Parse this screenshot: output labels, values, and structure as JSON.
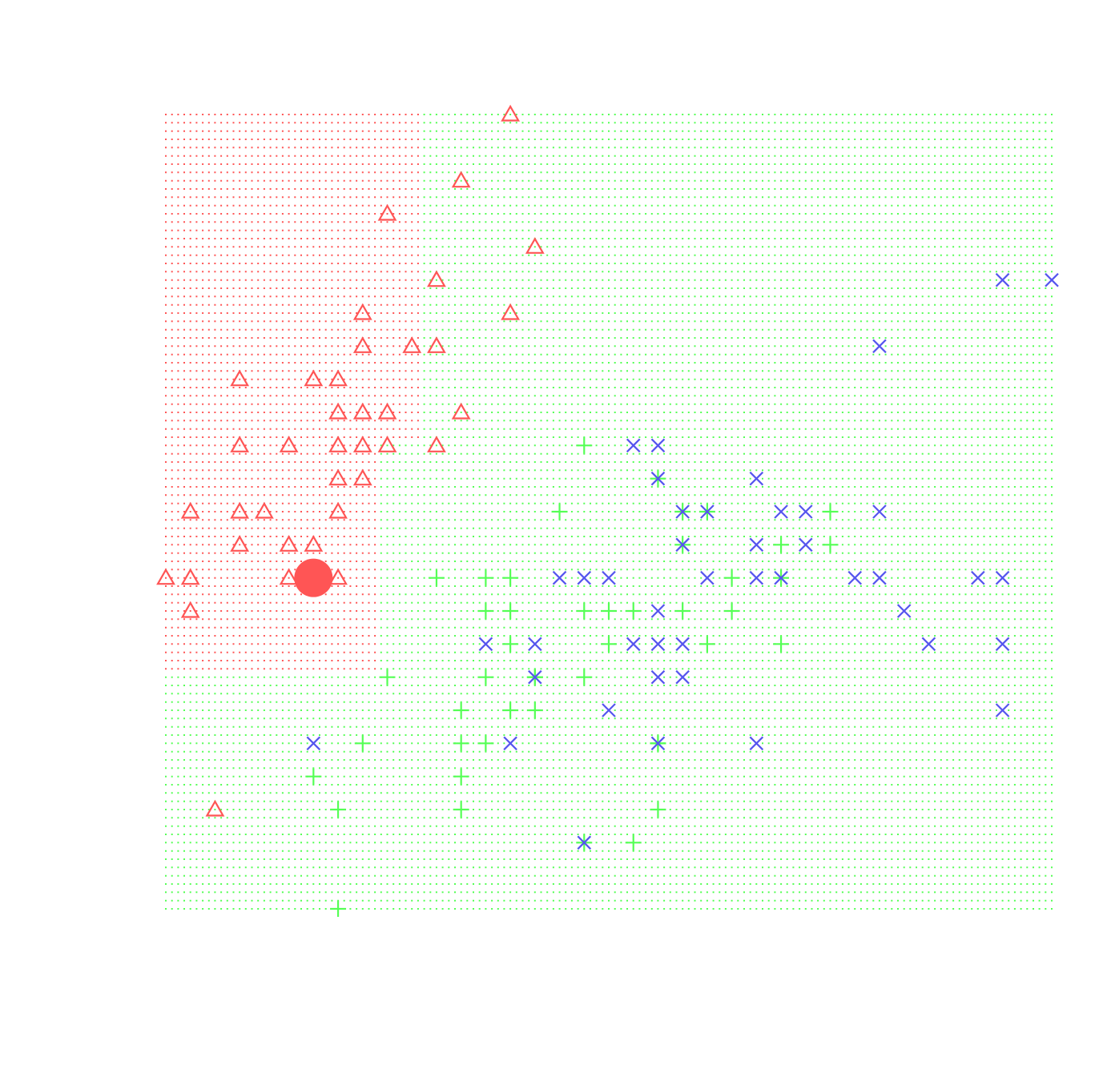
{
  "chart_data": {
    "type": "scatter",
    "title": "",
    "xlabel": "",
    "ylabel": "",
    "axes_visible": false,
    "grid": false,
    "xlim": [
      0,
      36
    ],
    "ylim": [
      0,
      24
    ],
    "colors": {
      "class1": "#ff5555",
      "class2": "#55ff55",
      "class3": "#5555ee"
    },
    "background_regions": [
      {
        "class": "class1",
        "x_range": [
          0,
          10.25
        ],
        "y_range": [
          14.25,
          24
        ]
      },
      {
        "class": "class1",
        "x_range": [
          0,
          8.5
        ],
        "y_range": [
          7.25,
          14.25
        ]
      },
      {
        "class": "class2",
        "x_range": [
          10.25,
          36
        ],
        "y_range": [
          14.25,
          24
        ]
      },
      {
        "class": "class2",
        "x_range": [
          8.5,
          36
        ],
        "y_range": [
          7.25,
          14.25
        ]
      },
      {
        "class": "class2",
        "x_range": [
          0,
          36
        ],
        "y_range": [
          0,
          7.25
        ]
      }
    ],
    "query_point": {
      "x": 6,
      "y": 10,
      "class": "class1"
    },
    "series": [
      {
        "class": "class1",
        "marker": "triangle",
        "points": [
          [
            14,
            24
          ],
          [
            12,
            22
          ],
          [
            9,
            21
          ],
          [
            15,
            20
          ],
          [
            11,
            19
          ],
          [
            8,
            18
          ],
          [
            14,
            18
          ],
          [
            8,
            17
          ],
          [
            10,
            17
          ],
          [
            11,
            17
          ],
          [
            3,
            16
          ],
          [
            6,
            16
          ],
          [
            7,
            16
          ],
          [
            7,
            15
          ],
          [
            8,
            15
          ],
          [
            9,
            15
          ],
          [
            12,
            15
          ],
          [
            3,
            14
          ],
          [
            5,
            14
          ],
          [
            7,
            14
          ],
          [
            8,
            14
          ],
          [
            9,
            14
          ],
          [
            11,
            14
          ],
          [
            7,
            13
          ],
          [
            8,
            13
          ],
          [
            1,
            12
          ],
          [
            3,
            12
          ],
          [
            4,
            12
          ],
          [
            7,
            12
          ],
          [
            3,
            11
          ],
          [
            5,
            11
          ],
          [
            6,
            11
          ],
          [
            0,
            10
          ],
          [
            1,
            10
          ],
          [
            5,
            10
          ],
          [
            7,
            10
          ],
          [
            1,
            9
          ],
          [
            2,
            3
          ]
        ]
      },
      {
        "class": "class2",
        "marker": "plus",
        "points": [
          [
            17,
            14
          ],
          [
            16,
            12
          ],
          [
            21,
            12
          ],
          [
            27,
            12
          ],
          [
            11,
            10
          ],
          [
            13,
            10
          ],
          [
            14,
            10
          ],
          [
            23,
            10
          ],
          [
            13,
            9
          ],
          [
            14,
            9
          ],
          [
            17,
            9
          ],
          [
            18,
            9
          ],
          [
            19,
            9
          ],
          [
            21,
            9
          ],
          [
            23,
            9
          ],
          [
            14,
            8
          ],
          [
            18,
            8
          ],
          [
            22,
            8
          ],
          [
            25,
            8
          ],
          [
            9,
            7
          ],
          [
            13,
            7
          ],
          [
            15,
            7
          ],
          [
            17,
            7
          ],
          [
            12,
            6
          ],
          [
            14,
            6
          ],
          [
            15,
            6
          ],
          [
            8,
            5
          ],
          [
            12,
            5
          ],
          [
            13,
            5
          ],
          [
            20,
            5
          ],
          [
            6,
            4
          ],
          [
            12,
            4
          ],
          [
            7,
            3
          ],
          [
            12,
            3
          ],
          [
            20,
            3
          ],
          [
            19,
            2
          ],
          [
            17,
            2
          ],
          [
            7,
            0
          ],
          [
            21,
            11
          ],
          [
            25,
            11
          ],
          [
            27,
            11
          ],
          [
            20,
            13
          ],
          [
            22,
            12
          ],
          [
            25,
            10
          ],
          [
            20,
            5
          ],
          [
            15,
            7
          ]
        ]
      },
      {
        "class": "class3",
        "marker": "x",
        "points": [
          [
            34,
            19
          ],
          [
            36,
            19
          ],
          [
            29,
            17
          ],
          [
            19,
            14
          ],
          [
            20,
            14
          ],
          [
            20,
            13
          ],
          [
            24,
            13
          ],
          [
            21,
            12
          ],
          [
            22,
            12
          ],
          [
            25,
            12
          ],
          [
            26,
            12
          ],
          [
            29,
            12
          ],
          [
            21,
            11
          ],
          [
            24,
            11
          ],
          [
            26,
            11
          ],
          [
            16,
            10
          ],
          [
            17,
            10
          ],
          [
            18,
            10
          ],
          [
            22,
            10
          ],
          [
            24,
            10
          ],
          [
            25,
            10
          ],
          [
            28,
            10
          ],
          [
            29,
            10
          ],
          [
            33,
            10
          ],
          [
            34,
            10
          ],
          [
            20,
            9
          ],
          [
            30,
            9
          ],
          [
            13,
            8
          ],
          [
            15,
            8
          ],
          [
            19,
            8
          ],
          [
            20,
            8
          ],
          [
            21,
            8
          ],
          [
            31,
            8
          ],
          [
            34,
            8
          ],
          [
            15,
            7
          ],
          [
            20,
            7
          ],
          [
            21,
            7
          ],
          [
            18,
            6
          ],
          [
            34,
            6
          ],
          [
            6,
            5
          ],
          [
            14,
            5
          ],
          [
            20,
            5
          ],
          [
            24,
            5
          ],
          [
            17,
            2
          ]
        ]
      }
    ]
  }
}
